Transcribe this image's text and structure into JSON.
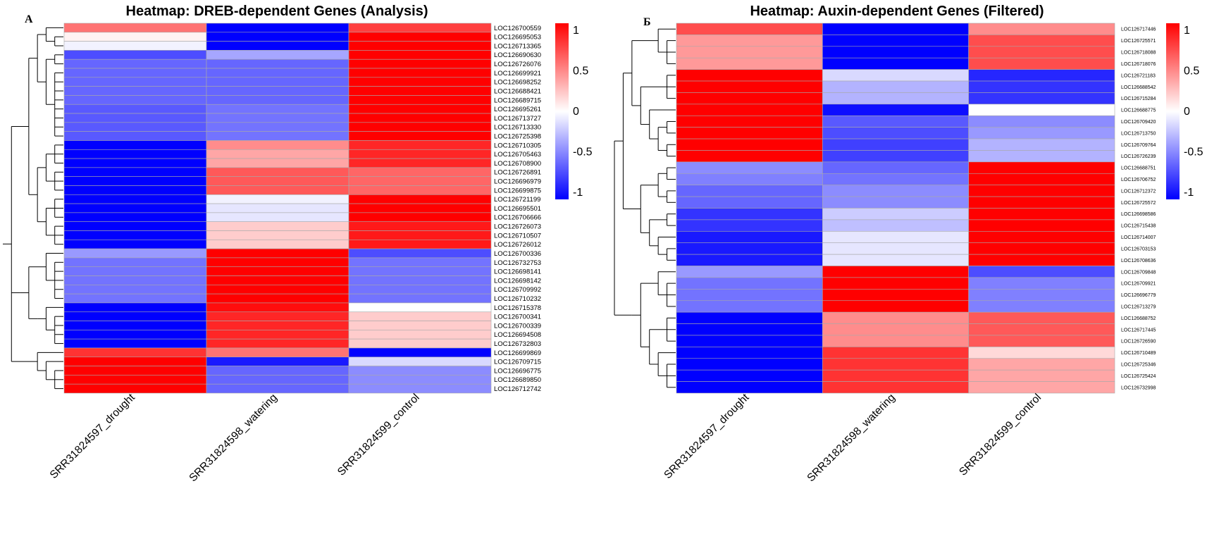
{
  "chart_data": [
    {
      "panel_label": "A",
      "type": "heatmap",
      "title": "Heatmap: DREB-dependent Genes (Analysis)",
      "columns": [
        "SRR31824597_drought",
        "SRR31824598_watering",
        "SRR31824599_control"
      ],
      "rows": [
        "LOC126700559",
        "LOC126695053",
        "LOC126713365",
        "LOC126690630",
        "LOC126726076",
        "LOC126699921",
        "LOC126698252",
        "LOC126688421",
        "LOC126689715",
        "LOC126695261",
        "LOC126713727",
        "LOC126713330",
        "LOC126725398",
        "LOC126710305",
        "LOC126705463",
        "LOC126708900",
        "LOC126726891",
        "LOC126696979",
        "LOC126699875",
        "LOC126721199",
        "LOC126695501",
        "LOC126706666",
        "LOC126726073",
        "LOC126710507",
        "LOC126726012",
        "LOC126700336",
        "LOC126732753",
        "LOC126698141",
        "LOC126698142",
        "LOC126709992",
        "LOC126710232",
        "LOC126715378",
        "LOC126700341",
        "LOC126700339",
        "LOC126694508",
        "LOC126732803",
        "LOC126699869",
        "LOC126709715",
        "LOC126696775",
        "LOC126689850",
        "LOC126712742"
      ],
      "values": [
        [
          0.55,
          -1.0,
          0.75
        ],
        [
          0.05,
          -1.0,
          1.0
        ],
        [
          -0.05,
          -1.0,
          1.0
        ],
        [
          -0.7,
          -0.35,
          1.0
        ],
        [
          -0.6,
          -0.6,
          1.0
        ],
        [
          -0.6,
          -0.6,
          1.0
        ],
        [
          -0.6,
          -0.6,
          1.0
        ],
        [
          -0.6,
          -0.6,
          1.0
        ],
        [
          -0.6,
          -0.6,
          1.0
        ],
        [
          -0.65,
          -0.55,
          1.0
        ],
        [
          -0.65,
          -0.55,
          1.0
        ],
        [
          -0.65,
          -0.55,
          1.0
        ],
        [
          -0.65,
          -0.55,
          1.0
        ],
        [
          -1.0,
          0.45,
          0.85
        ],
        [
          -1.0,
          0.35,
          0.85
        ],
        [
          -1.0,
          0.35,
          0.85
        ],
        [
          -1.0,
          0.65,
          0.6
        ],
        [
          -1.0,
          0.65,
          0.6
        ],
        [
          -1.0,
          0.65,
          0.6
        ],
        [
          -1.0,
          -0.05,
          1.0
        ],
        [
          -1.0,
          -0.1,
          1.0
        ],
        [
          -1.0,
          -0.1,
          1.0
        ],
        [
          -1.0,
          0.2,
          0.9
        ],
        [
          -1.0,
          0.2,
          0.9
        ],
        [
          -1.0,
          0.2,
          0.9
        ],
        [
          -0.4,
          1.0,
          -0.7
        ],
        [
          -0.55,
          1.0,
          -0.55
        ],
        [
          -0.55,
          1.0,
          -0.55
        ],
        [
          -0.55,
          1.0,
          -0.55
        ],
        [
          -0.55,
          1.0,
          -0.55
        ],
        [
          -0.55,
          1.0,
          -0.55
        ],
        [
          -1.0,
          0.95,
          0.0
        ],
        [
          -1.0,
          0.85,
          0.2
        ],
        [
          -1.0,
          0.85,
          0.2
        ],
        [
          -1.0,
          0.85,
          0.2
        ],
        [
          -1.0,
          0.85,
          0.2
        ],
        [
          0.8,
          0.55,
          -1.0
        ],
        [
          1.0,
          -0.9,
          -0.15
        ],
        [
          1.0,
          -0.6,
          -0.45
        ],
        [
          1.0,
          -0.6,
          -0.45
        ],
        [
          1.0,
          -0.6,
          -0.45
        ]
      ],
      "colorbar": {
        "ticks": [
          1,
          0.5,
          0,
          -0.5,
          -1
        ],
        "tick_labels": [
          "1",
          "0.5",
          "0",
          "-0.5",
          "-1"
        ]
      },
      "dendrogram": "(((((0,(1,2)),((3,4),(5,6,7,8,9,10,11,12))),(((13,14,15),(16,17,18)),((19,20,21),(22,23,24)))),(((25,(26,27,28,29,30)),((31,(32,33,34,35))))),(36,(37,(38,39,40))))"
    },
    {
      "panel_label": "Б",
      "type": "heatmap",
      "title": "Heatmap: Auxin-dependent Genes (Filtered)",
      "columns": [
        "SRR31824597_drought",
        "SRR31824598_watering",
        "SRR31824599_control"
      ],
      "rows": [
        "LOC126717446",
        "LOC126725571",
        "LOC126718088",
        "LOC126718076",
        "LOC126721183",
        "LOC126688542",
        "LOC126715284",
        "LOC126688775",
        "LOC126709420",
        "LOC126713750",
        "LOC126709764",
        "LOC126726239",
        "LOC126688751",
        "LOC126706752",
        "LOC126712372",
        "LOC126725572",
        "LOC126698586",
        "LOC126715438",
        "LOC126714007",
        "LOC126703153",
        "LOC126708636",
        "LOC126709848",
        "LOC126709921",
        "LOC126696779",
        "LOC126713279",
        "LOC126688752",
        "LOC126717445",
        "LOC126726590",
        "LOC126710489",
        "LOC126725346",
        "LOC126725424",
        "LOC126732998"
      ],
      "values": [
        [
          0.7,
          -1.0,
          0.45
        ],
        [
          0.4,
          -1.0,
          0.7
        ],
        [
          0.4,
          -1.0,
          0.7
        ],
        [
          0.4,
          -1.0,
          0.7
        ],
        [
          1.0,
          -0.15,
          -0.85
        ],
        [
          1.0,
          -0.3,
          -0.8
        ],
        [
          1.0,
          -0.3,
          -0.8
        ],
        [
          1.0,
          -0.95,
          0.0
        ],
        [
          1.0,
          -0.65,
          -0.45
        ],
        [
          1.0,
          -0.7,
          -0.4
        ],
        [
          1.0,
          -0.75,
          -0.3
        ],
        [
          1.0,
          -0.75,
          -0.3
        ],
        [
          -0.45,
          -0.6,
          1.0
        ],
        [
          -0.5,
          -0.55,
          1.0
        ],
        [
          -0.6,
          -0.45,
          1.0
        ],
        [
          -0.6,
          -0.45,
          1.0
        ],
        [
          -0.8,
          -0.2,
          1.0
        ],
        [
          -0.8,
          -0.25,
          1.0
        ],
        [
          -0.9,
          -0.1,
          1.0
        ],
        [
          -0.9,
          -0.1,
          1.0
        ],
        [
          -0.9,
          -0.1,
          1.0
        ],
        [
          -0.4,
          1.0,
          -0.7
        ],
        [
          -0.55,
          1.0,
          -0.5
        ],
        [
          -0.55,
          1.0,
          -0.5
        ],
        [
          -0.55,
          1.0,
          -0.5
        ],
        [
          -1.0,
          0.45,
          0.65
        ],
        [
          -1.0,
          0.45,
          0.65
        ],
        [
          -1.0,
          0.45,
          0.65
        ],
        [
          -1.0,
          0.8,
          0.15
        ],
        [
          -1.0,
          0.8,
          0.35
        ],
        [
          -1.0,
          0.8,
          0.35
        ],
        [
          -1.0,
          0.8,
          0.35
        ]
      ],
      "colorbar": {
        "ticks": [
          1,
          0.5,
          0,
          -0.5,
          -1
        ],
        "tick_labels": [
          "1",
          "0.5",
          "0",
          "-0.5",
          "-1"
        ]
      },
      "dendrogram": "((((0,(1,2,3)),((4,5,6),(7,((8,9),(10,11))))),(((12,13),(14,15)),((16,17),(18,(19,20))))),(((21,(22,23,24)),((25,26,27),(28,(29,30,31))))))"
    }
  ]
}
